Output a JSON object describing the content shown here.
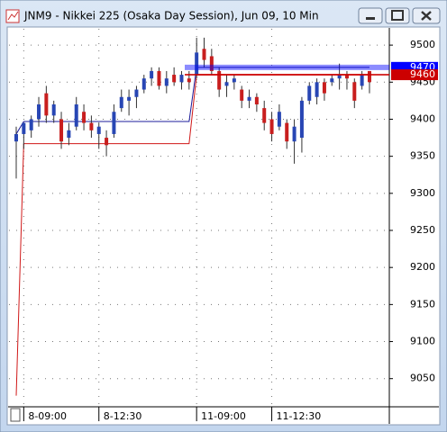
{
  "chart_data": {
    "type": "candlestick",
    "title": "JNM9 - Nikkei 225 (Osaka Day Session), Jun 09, 10 Min",
    "categories": [
      null,
      "8-09:00",
      null,
      null,
      null,
      null,
      null,
      null,
      null,
      null,
      null,
      "8-12:30",
      null,
      null,
      null,
      null,
      null,
      null,
      null,
      null,
      null,
      null,
      null,
      null,
      "11-09:00",
      null,
      null,
      null,
      null,
      null,
      null,
      null,
      null,
      null,
      "11-12:30",
      null,
      null,
      null,
      null,
      null,
      null,
      null,
      null,
      null,
      null,
      null,
      null,
      null
    ],
    "open": [
      9370,
      9380,
      9385,
      9400,
      9435,
      9405,
      9400,
      9375,
      9390,
      9410,
      9395,
      9380,
      9375,
      9380,
      9415,
      9425,
      9430,
      9440,
      9455,
      9465,
      9445,
      9460,
      9450,
      9455,
      9460,
      9495,
      9485,
      9465,
      9445,
      9450,
      9440,
      9425,
      9430,
      9415,
      9400,
      9390,
      9395,
      9370,
      9375,
      9425,
      9430,
      9450,
      9450,
      9455,
      9460,
      9450,
      9445,
      9465
    ],
    "high": [
      9390,
      9395,
      9405,
      9430,
      9445,
      9425,
      9410,
      9395,
      9430,
      9420,
      9405,
      9395,
      9385,
      9420,
      9440,
      9440,
      9445,
      9460,
      9470,
      9470,
      9465,
      9470,
      9465,
      9465,
      9510,
      9510,
      9495,
      9470,
      9460,
      9460,
      9445,
      9440,
      9435,
      9425,
      9410,
      9420,
      9400,
      9400,
      9430,
      9450,
      9455,
      9455,
      9460,
      9475,
      9465,
      9455,
      9465,
      9465
    ],
    "low": [
      9320,
      9360,
      9375,
      9390,
      9395,
      9395,
      9360,
      9365,
      9385,
      9385,
      9375,
      9360,
      9350,
      9375,
      9410,
      9405,
      9415,
      9435,
      9445,
      9440,
      9435,
      9445,
      9440,
      9440,
      9455,
      9470,
      9460,
      9430,
      9430,
      9440,
      9415,
      9415,
      9410,
      9385,
      9370,
      9385,
      9360,
      9340,
      9355,
      9420,
      9420,
      9425,
      9445,
      9440,
      9440,
      9415,
      9440,
      9435
    ],
    "close": [
      9380,
      9395,
      9400,
      9420,
      9405,
      9420,
      9370,
      9385,
      9420,
      9395,
      9385,
      9390,
      9365,
      9410,
      9430,
      9430,
      9440,
      9455,
      9465,
      9445,
      9455,
      9450,
      9460,
      9450,
      9490,
      9480,
      9465,
      9440,
      9450,
      9455,
      9425,
      9430,
      9420,
      9395,
      9380,
      9410,
      9370,
      9390,
      9425,
      9445,
      9450,
      9435,
      9455,
      9460,
      9455,
      9425,
      9460,
      9450
    ],
    "up_color": "#2846b4",
    "down_color": "#c81e1e",
    "lines": [
      {
        "color": "#1c1c9c",
        "values": [
          9380,
          9397,
          9397,
          9397,
          9397,
          9397,
          9397,
          9397,
          9397,
          9397,
          9397,
          9397,
          9397,
          9397,
          9397,
          9397,
          9397,
          9397,
          9397,
          9397,
          9397,
          9397,
          9397,
          9397,
          9470,
          9470,
          9470,
          9470,
          9470,
          9470,
          9470,
          9470,
          9470,
          9470,
          9470,
          9470,
          9470,
          9470,
          9470,
          9470,
          9470,
          9470,
          9470,
          9470,
          9470,
          9470,
          9470,
          9470
        ]
      },
      {
        "color": "#d01818",
        "values": [
          9027,
          9367,
          9367,
          9367,
          9367,
          9367,
          9367,
          9367,
          9367,
          9367,
          9367,
          9367,
          9367,
          9367,
          9367,
          9367,
          9367,
          9367,
          9367,
          9367,
          9367,
          9367,
          9367,
          9367,
          9460,
          9460,
          9460,
          9460,
          9460,
          9460,
          9460,
          9460,
          9460,
          9460,
          9460,
          9460,
          9460,
          9460,
          9460,
          9460,
          9460,
          9460,
          9460,
          9460,
          9460,
          9460,
          9460,
          9460
        ]
      }
    ],
    "price_lines": [
      {
        "value": 9470,
        "color": "#0000ff"
      },
      {
        "value": 9460,
        "color": "#cc0000"
      }
    ],
    "ylim": [
      9012,
      9522
    ],
    "yticks": [
      9050,
      9100,
      9150,
      9200,
      9250,
      9300,
      9350,
      9400,
      9450,
      9500
    ],
    "grid": true
  }
}
